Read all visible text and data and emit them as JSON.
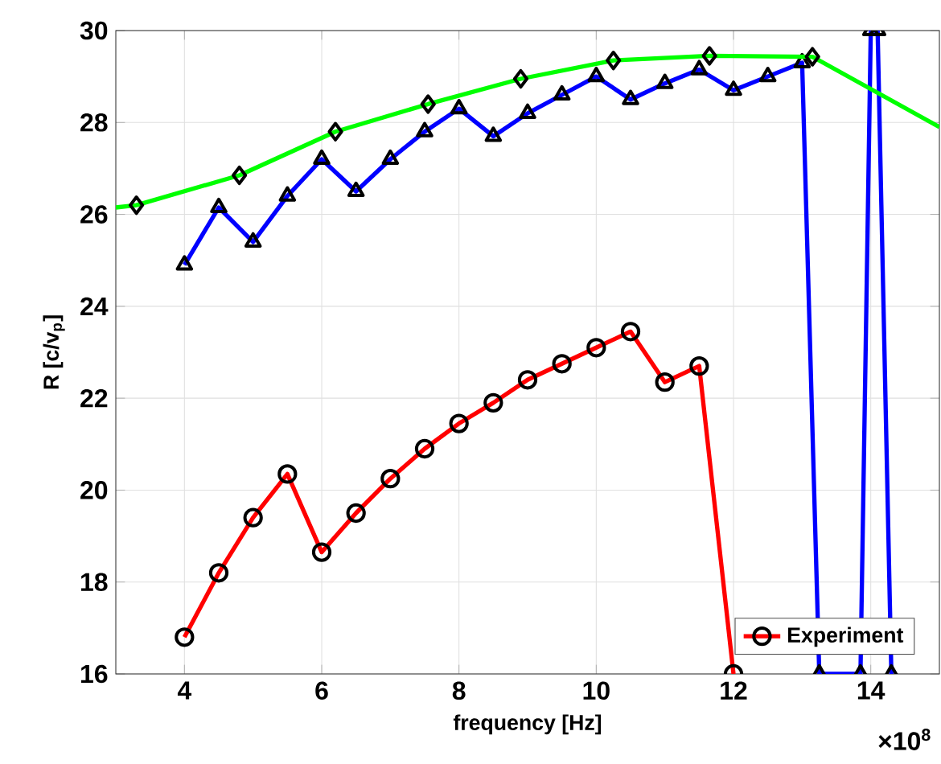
{
  "chart_data": {
    "type": "line",
    "xlabel": "frequency [Hz]",
    "ylabel": "R [c/v$_{p}$]",
    "annotations": [
      "×10$^{8}$"
    ],
    "xlim": [
      3,
      15
    ],
    "ylim": [
      16,
      30
    ],
    "xticks": [
      4,
      6,
      8,
      10,
      12,
      14
    ],
    "yticks": [
      16,
      18,
      20,
      22,
      24,
      26,
      28,
      30
    ],
    "grid": true,
    "legend": "bottom right",
    "series": [
      {
        "name": "Experiment",
        "color": "#ff0000",
        "marker": "circle",
        "x": [
          4,
          4.5,
          5,
          5.5,
          6,
          6.5,
          7,
          7.5,
          8,
          8.5,
          9,
          9.5,
          10,
          10.5,
          11,
          11.5,
          12
        ],
        "values": [
          16.8,
          18.2,
          19.4,
          20.35,
          18.65,
          19.5,
          20.25,
          20.9,
          21.45,
          21.9,
          22.4,
          22.75,
          23.1,
          23.45,
          22.35,
          22.7,
          16
        ]
      },
      {
        "color": "#0000ff",
        "marker": "triangle",
        "x": [
          4,
          4.5,
          5,
          5.5,
          6,
          6.5,
          7,
          7.5,
          8,
          8.5,
          9,
          9.5,
          10,
          10.5,
          11,
          11.5,
          12,
          12.5,
          13,
          13.25,
          13.85,
          14.0,
          14.1,
          14.3
        ],
        "values": [
          24.9,
          26.15,
          25.4,
          26.4,
          27.2,
          26.5,
          27.2,
          27.8,
          28.3,
          27.7,
          28.2,
          28.6,
          29.0,
          28.5,
          28.85,
          29.15,
          28.7,
          29.0,
          29.3,
          16,
          16,
          30,
          30,
          16
        ]
      },
      {
        "color": "#00ff00",
        "marker": "diamond",
        "x": [
          3,
          3.3,
          4.8,
          6.2,
          7.55,
          8.9,
          10.25,
          11.65,
          13.15,
          15
        ],
        "values": [
          26.15,
          26.2,
          26.85,
          27.8,
          28.4,
          28.95,
          29.35,
          29.45,
          29.43,
          27.9
        ]
      }
    ]
  }
}
